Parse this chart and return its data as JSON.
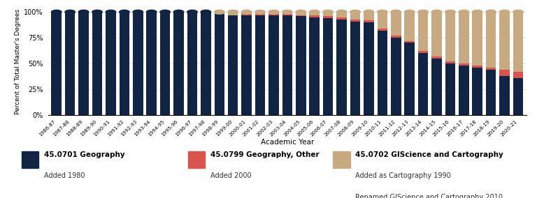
{
  "years": [
    "1986-87",
    "1987-88",
    "1988-89",
    "1989-90",
    "1990-91",
    "1991-92",
    "1992-93",
    "1993-94",
    "1994-95",
    "1995-96",
    "1996-97",
    "1997-98",
    "1998-99",
    "1999-00",
    "2000-01",
    "2001-02",
    "2002-03",
    "2003-04",
    "2004-05",
    "2005-06",
    "2006-07",
    "2007-08",
    "2008-09",
    "2009-10",
    "2010-11",
    "2011-12",
    "2012-13",
    "2013-14",
    "2014-15",
    "2015-16",
    "2016-17",
    "2017-18",
    "2018-19",
    "2019-20",
    "2020-21"
  ],
  "geography": [
    100,
    100,
    100,
    100,
    100,
    100,
    100,
    100,
    100,
    100,
    100,
    100,
    98,
    97,
    97,
    97,
    97,
    97,
    96,
    95,
    94,
    93,
    91,
    90,
    82,
    75,
    70,
    60,
    55,
    50,
    48,
    46,
    44,
    38,
    36
  ],
  "other": [
    0,
    0,
    0,
    0,
    0,
    0,
    0,
    0,
    0,
    0,
    0,
    0,
    0,
    0,
    1,
    1,
    1,
    1,
    1,
    2,
    2,
    2,
    2,
    2,
    2,
    2,
    2,
    2,
    2,
    2,
    2,
    2,
    2,
    6,
    6
  ],
  "giscience": [
    0,
    0,
    0,
    0,
    0,
    0,
    0,
    0,
    0,
    0,
    0,
    0,
    2,
    3,
    2,
    2,
    2,
    2,
    3,
    3,
    4,
    5,
    7,
    8,
    16,
    23,
    28,
    38,
    43,
    48,
    50,
    52,
    54,
    56,
    58
  ],
  "color_geography": "#122444",
  "color_other": "#d9534f",
  "color_giscience": "#c8aa82",
  "xlabel": "Academic Year",
  "ylabel": "Percent of Total Master's Degrees",
  "yticks": [
    0,
    25,
    50,
    75,
    100
  ],
  "ytick_labels": [
    "0%",
    "25%",
    "50%",
    "75%",
    "100%"
  ],
  "legend_geo_label": "45.0701 Geography",
  "legend_geo_sub": "Added 1980",
  "legend_other_label": "45.0799 Geography, Other",
  "legend_other_sub": "Added 2000",
  "legend_gis_label": "45.0702 GIScience and Cartography",
  "legend_gis_sub1": "Added as Cartography 1990",
  "legend_gis_sub2": "Renamed GIScience and Cartography 2010",
  "bar_width": 0.75,
  "background_color": "#ffffff"
}
